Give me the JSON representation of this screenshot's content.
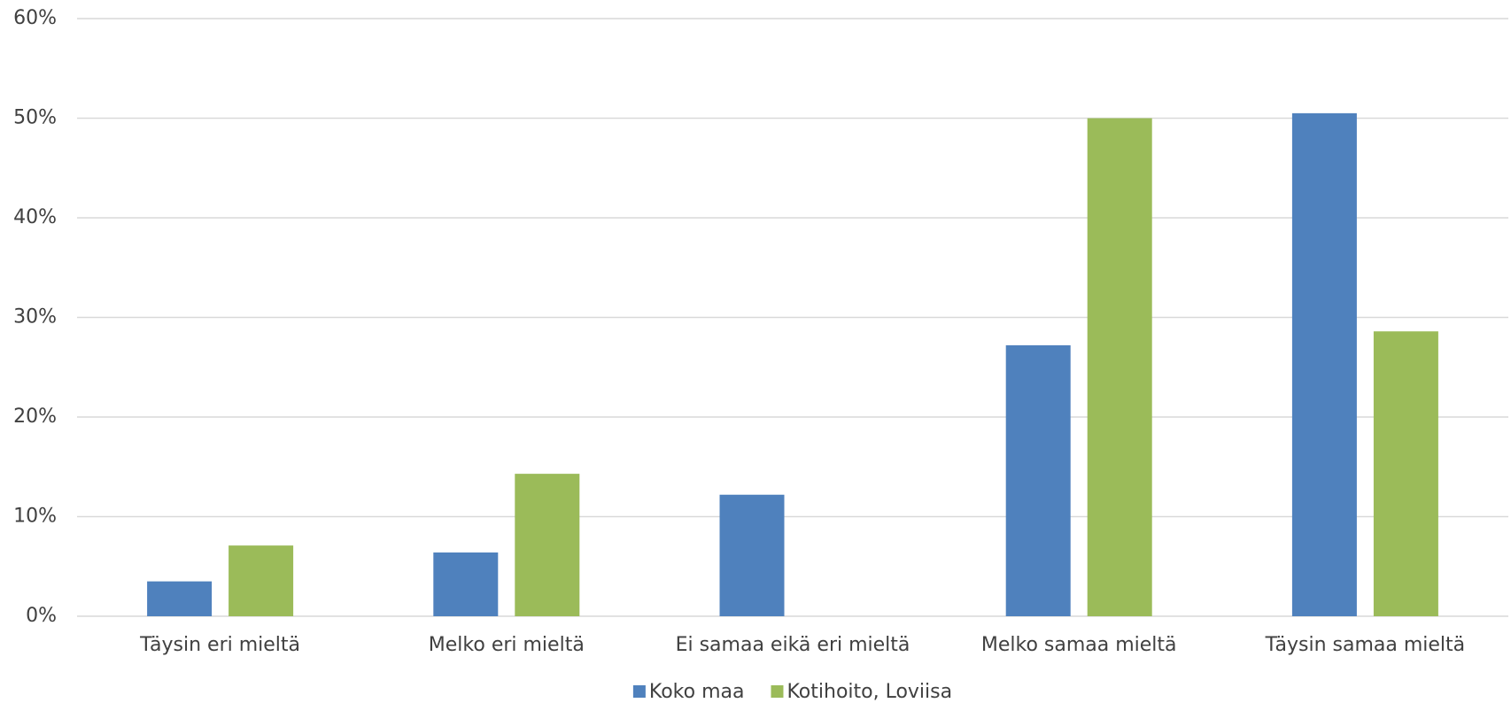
{
  "chart_data": {
    "type": "bar",
    "categories": [
      "Täysin eri mieltä",
      "Melko eri mieltä",
      "Ei samaa eikä eri mieltä",
      "Melko samaa mieltä",
      "Täysin samaa mieltä"
    ],
    "series": [
      {
        "name": "Koko maa",
        "color": "#4f81bd",
        "values": [
          3.5,
          6.4,
          12.2,
          27.2,
          50.5
        ]
      },
      {
        "name": "Kotihoito, Loviisa",
        "color": "#9bbb59",
        "values": [
          7.1,
          14.3,
          0,
          50,
          28.6
        ]
      }
    ],
    "ylim": [
      0,
      60
    ],
    "yticks": [
      {
        "value": 0,
        "label": "0%"
      },
      {
        "value": 10,
        "label": "10%"
      },
      {
        "value": 20,
        "label": "20%"
      },
      {
        "value": 30,
        "label": "30%"
      },
      {
        "value": 40,
        "label": "40%"
      },
      {
        "value": 50,
        "label": "50%"
      },
      {
        "value": 60,
        "label": "60%"
      }
    ],
    "grid": true,
    "legend": "bottom"
  }
}
